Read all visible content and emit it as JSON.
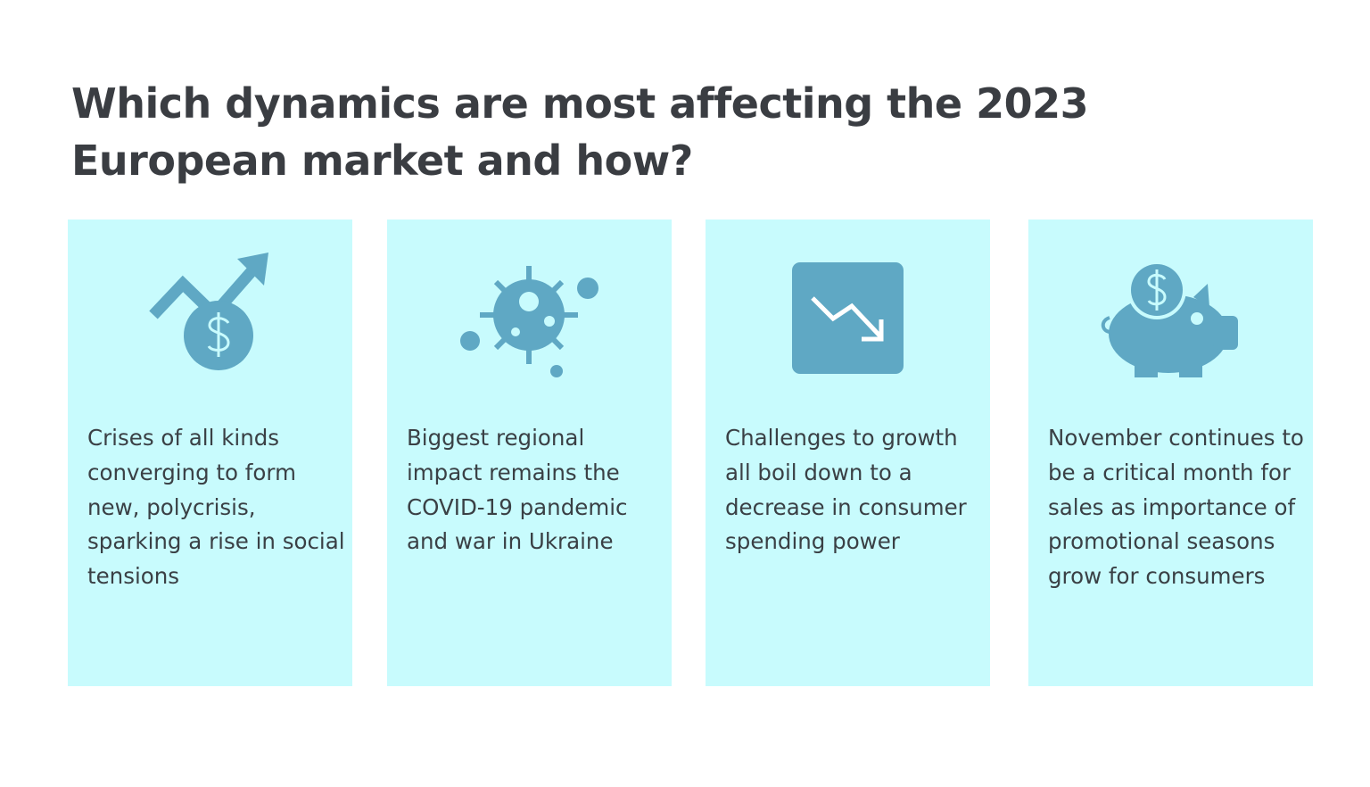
{
  "header": {
    "title": "Which dynamics are most affecting the 2023 European market and how?"
  },
  "cards": [
    {
      "text": "Crises of all kinds converging to form new, polycrisis, sparking a rise in social tensions"
    },
    {
      "text": "Biggest regional impact remains the COVID-19 pandemic and war in Ukraine"
    },
    {
      "text": "Challenges to growth all boil down to a decrease in consumer spending power"
    },
    {
      "text": "November continues to be a critical month for sales as importance of promotional seasons grow for consumers"
    }
  ]
}
